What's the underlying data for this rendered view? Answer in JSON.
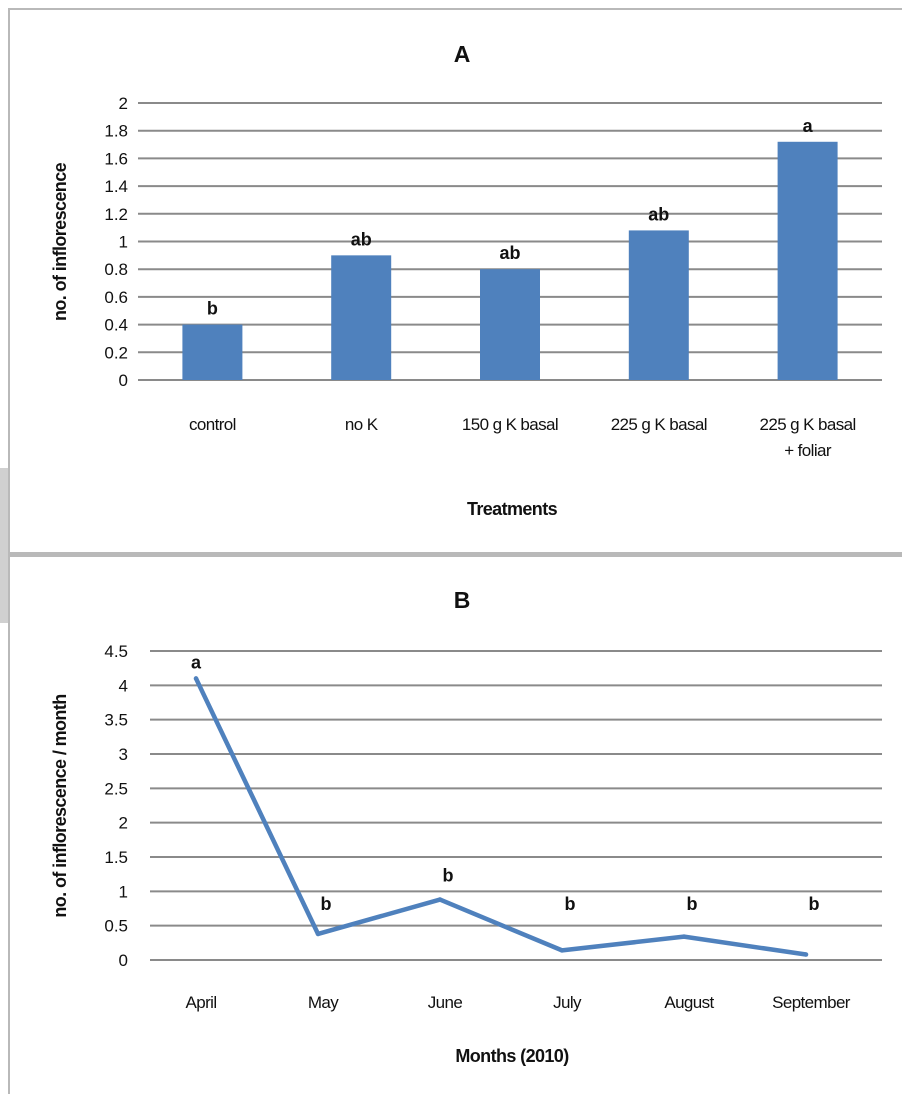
{
  "chart_data": [
    {
      "type": "bar",
      "title": "A",
      "xlabel": "Treatments",
      "ylabel": "no. of inflorescence",
      "categories": [
        [
          "control"
        ],
        [
          "no K"
        ],
        [
          "150 g K basal"
        ],
        [
          "225 g K basal"
        ],
        [
          "225 g K basal",
          "+ foliar"
        ]
      ],
      "values": [
        0.4,
        0.9,
        0.8,
        1.08,
        1.72
      ],
      "data_labels": [
        "b",
        "ab",
        "ab",
        "ab",
        "a"
      ],
      "yticks": [
        "0",
        "0.2",
        "0.4",
        "0.6",
        "0.8",
        "1",
        "1.2",
        "1.4",
        "1.6",
        "1.8",
        "2"
      ],
      "ylim": [
        0,
        2
      ],
      "grid": true,
      "color": "#4f81bd"
    },
    {
      "type": "line",
      "title": "B",
      "xlabel": "Months (2010)",
      "ylabel": "no. of inflorescence / month",
      "categories": [
        "April",
        "May",
        "June",
        "July",
        "August",
        "September"
      ],
      "values": [
        4.1,
        0.38,
        0.88,
        0.14,
        0.34,
        0.08
      ],
      "data_labels": [
        "a",
        "b",
        "b",
        "b",
        "b",
        "b"
      ],
      "yticks": [
        "0",
        "0.5",
        "1",
        "1.5",
        "2",
        "2.5",
        "3",
        "3.5",
        "4",
        "4.5"
      ],
      "ylim": [
        0,
        4.5
      ],
      "grid": true,
      "color": "#4f81bd"
    }
  ]
}
